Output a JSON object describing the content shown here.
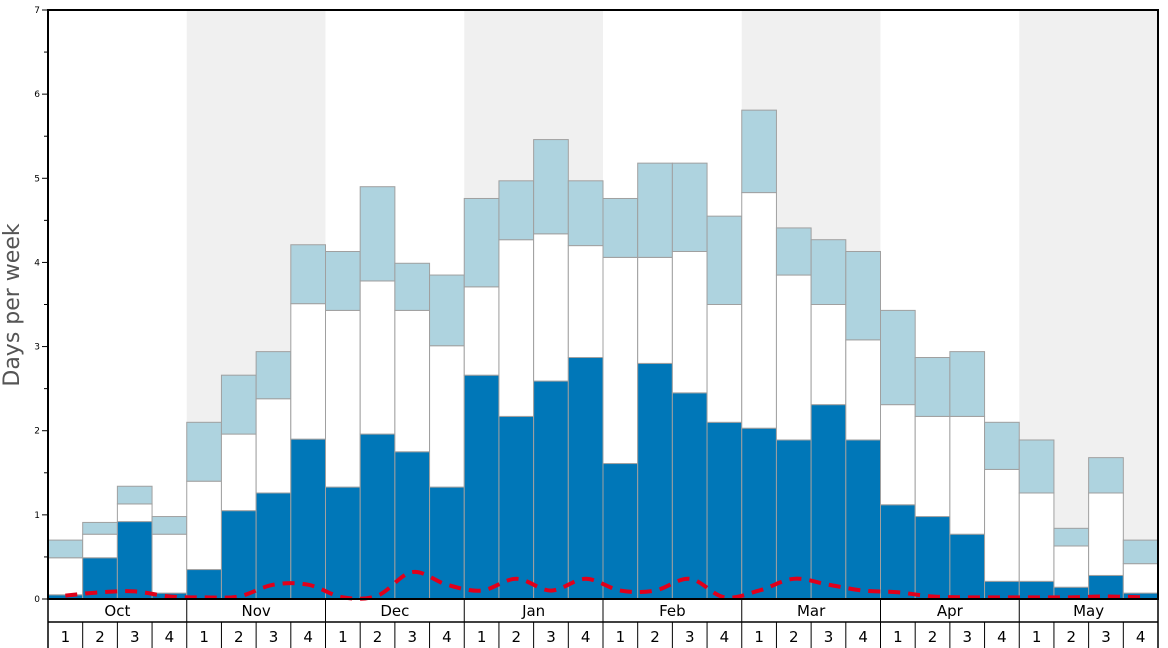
{
  "chart_data": {
    "type": "bar",
    "stacked": true,
    "ylabel": "Days per week",
    "ylim": [
      0,
      7
    ],
    "yticks": [
      "0",
      "1",
      "2",
      "3",
      "4",
      "5",
      "6",
      "7"
    ],
    "months": [
      "Oct",
      "Nov",
      "Dec",
      "Jan",
      "Feb",
      "Mar",
      "Apr",
      "May"
    ],
    "week_labels": [
      "1",
      "2",
      "3",
      "4"
    ],
    "categories": [
      "Oct 1",
      "Oct 2",
      "Oct 3",
      "Oct 4",
      "Nov 1",
      "Nov 2",
      "Nov 3",
      "Nov 4",
      "Dec 1",
      "Dec 2",
      "Dec 3",
      "Dec 4",
      "Jan 1",
      "Jan 2",
      "Jan 3",
      "Jan 4",
      "Feb 1",
      "Feb 2",
      "Feb 3",
      "Feb 4",
      "Mar 1",
      "Mar 2",
      "Mar 3",
      "Mar 4",
      "Apr 1",
      "Apr 2",
      "Apr 3",
      "Apr 4",
      "May 1",
      "May 2",
      "May 3",
      "May 4"
    ],
    "series": [
      {
        "color": "#0077b8",
        "values": [
          0.05,
          0.49,
          0.92,
          0.07,
          0.35,
          1.05,
          1.26,
          1.9,
          1.33,
          1.96,
          1.75,
          1.33,
          2.66,
          2.17,
          2.59,
          2.87,
          1.61,
          2.8,
          2.45,
          2.1,
          2.03,
          1.89,
          2.31,
          1.89,
          1.12,
          0.98,
          0.77,
          0.21,
          0.21,
          0.14,
          0.28,
          0.07
        ]
      },
      {
        "color": "#ffffff",
        "values": [
          0.44,
          0.28,
          0.21,
          0.7,
          1.05,
          0.91,
          1.12,
          1.61,
          2.1,
          1.82,
          1.68,
          1.68,
          1.05,
          2.1,
          1.75,
          1.33,
          2.45,
          1.26,
          1.68,
          1.4,
          2.8,
          1.96,
          1.19,
          1.19,
          1.19,
          1.19,
          1.4,
          1.33,
          1.05,
          0.49,
          0.98,
          0.35
        ]
      },
      {
        "color": "#aed3df",
        "values": [
          0.21,
          0.14,
          0.21,
          0.21,
          0.7,
          0.7,
          0.56,
          0.7,
          0.7,
          1.12,
          0.56,
          0.84,
          1.05,
          0.7,
          1.12,
          0.77,
          0.7,
          1.12,
          1.05,
          1.05,
          0.98,
          0.56,
          0.77,
          1.05,
          1.12,
          0.7,
          0.77,
          0.56,
          0.63,
          0.21,
          0.42,
          0.28
        ]
      }
    ],
    "line_series": {
      "color": "#e0001b",
      "style": "dashed",
      "values": [
        0.04,
        0.08,
        0.09,
        0.03,
        0.02,
        0.03,
        0.17,
        0.17,
        0.02,
        0.04,
        0.32,
        0.17,
        0.1,
        0.24,
        0.1,
        0.24,
        0.1,
        0.1,
        0.24,
        0.02,
        0.1,
        0.24,
        0.17,
        0.1,
        0.08,
        0.03,
        0.02,
        0.02,
        0.02,
        0.02,
        0.03,
        0.02
      ]
    },
    "month_shading": [
      "#ffffff",
      "#f0f0f0"
    ],
    "grid": false,
    "legend": "none"
  }
}
